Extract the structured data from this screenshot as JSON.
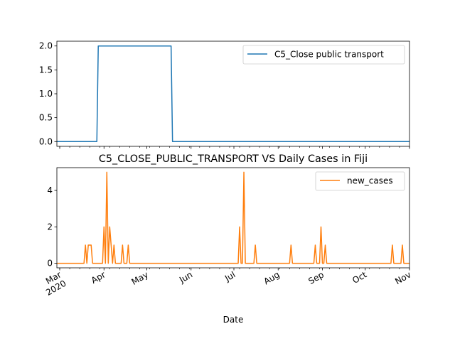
{
  "figure": {
    "title": "C5_CLOSE_PUBLIC_TRANSPORT VS Daily Cases in Fiji",
    "xlabel": "Date",
    "x_tick_labels": [
      {
        "date": "2020-03-01",
        "lines": [
          "Mar",
          "2020"
        ]
      },
      {
        "date": "2020-04-01",
        "lines": [
          "Apr"
        ]
      },
      {
        "date": "2020-05-01",
        "lines": [
          "May"
        ]
      },
      {
        "date": "2020-06-01",
        "lines": [
          "Jun"
        ]
      },
      {
        "date": "2020-07-01",
        "lines": [
          "Jul"
        ]
      },
      {
        "date": "2020-08-01",
        "lines": [
          "Aug"
        ]
      },
      {
        "date": "2020-09-01",
        "lines": [
          "Sep"
        ]
      },
      {
        "date": "2020-10-01",
        "lines": [
          "Oct"
        ]
      },
      {
        "date": "2020-11-01",
        "lines": [
          "Nov"
        ]
      }
    ]
  },
  "chart_data": [
    {
      "type": "line",
      "title": "",
      "xlabel": "",
      "ylabel": "",
      "x_type": "date",
      "xlim": [
        "2020-02-28",
        "2020-11-01"
      ],
      "ylim": [
        -0.1,
        2.1
      ],
      "yticks": [
        "0.0",
        "0.5",
        "1.0",
        "1.5",
        "2.0"
      ],
      "grid": false,
      "legend_position": "upper right",
      "series": [
        {
          "name": "C5_Close public transport",
          "color": "#1f77b4",
          "points": [
            [
              "2020-02-28",
              0
            ],
            [
              "2020-03-27",
              0
            ],
            [
              "2020-03-28",
              2
            ],
            [
              "2020-05-18",
              2
            ],
            [
              "2020-05-19",
              0
            ],
            [
              "2020-11-01",
              0
            ]
          ]
        }
      ]
    },
    {
      "type": "line",
      "title": "C5_CLOSE_PUBLIC_TRANSPORT VS Daily Cases in Fiji",
      "xlabel": "Date",
      "ylabel": "",
      "x_type": "date",
      "xlim": [
        "2020-02-28",
        "2020-11-01"
      ],
      "ylim": [
        -0.25,
        5.25
      ],
      "yticks": [
        "0",
        "2",
        "4"
      ],
      "grid": false,
      "legend_position": "upper right",
      "series": [
        {
          "name": "new_cases",
          "color": "#ff7f0e",
          "points": [
            [
              "2020-02-28",
              0
            ],
            [
              "2020-03-18",
              0
            ],
            [
              "2020-03-19",
              1
            ],
            [
              "2020-03-20",
              0
            ],
            [
              "2020-03-21",
              1
            ],
            [
              "2020-03-22",
              1
            ],
            [
              "2020-03-23",
              1
            ],
            [
              "2020-03-24",
              0
            ],
            [
              "2020-03-31",
              0
            ],
            [
              "2020-04-01",
              2
            ],
            [
              "2020-04-02",
              0
            ],
            [
              "2020-04-03",
              5
            ],
            [
              "2020-04-04",
              0
            ],
            [
              "2020-04-05",
              2
            ],
            [
              "2020-04-06",
              1
            ],
            [
              "2020-04-07",
              0
            ],
            [
              "2020-04-08",
              1
            ],
            [
              "2020-04-09",
              0
            ],
            [
              "2020-04-13",
              0
            ],
            [
              "2020-04-14",
              1
            ],
            [
              "2020-04-15",
              0
            ],
            [
              "2020-04-17",
              0
            ],
            [
              "2020-04-18",
              1
            ],
            [
              "2020-04-19",
              0
            ],
            [
              "2020-07-04",
              0
            ],
            [
              "2020-07-05",
              2
            ],
            [
              "2020-07-06",
              0
            ],
            [
              "2020-07-07",
              0
            ],
            [
              "2020-07-08",
              5
            ],
            [
              "2020-07-09",
              0
            ],
            [
              "2020-07-15",
              0
            ],
            [
              "2020-07-16",
              1
            ],
            [
              "2020-07-17",
              0
            ],
            [
              "2020-08-09",
              0
            ],
            [
              "2020-08-10",
              1
            ],
            [
              "2020-08-11",
              0
            ],
            [
              "2020-08-26",
              0
            ],
            [
              "2020-08-27",
              1
            ],
            [
              "2020-08-28",
              0
            ],
            [
              "2020-08-30",
              0
            ],
            [
              "2020-08-31",
              2
            ],
            [
              "2020-09-01",
              0
            ],
            [
              "2020-09-02",
              0
            ],
            [
              "2020-09-03",
              1
            ],
            [
              "2020-09-04",
              0
            ],
            [
              "2020-10-19",
              0
            ],
            [
              "2020-10-20",
              1
            ],
            [
              "2020-10-21",
              0
            ],
            [
              "2020-10-26",
              0
            ],
            [
              "2020-10-27",
              1
            ],
            [
              "2020-10-28",
              0
            ],
            [
              "2020-11-01",
              0
            ]
          ]
        }
      ]
    }
  ]
}
